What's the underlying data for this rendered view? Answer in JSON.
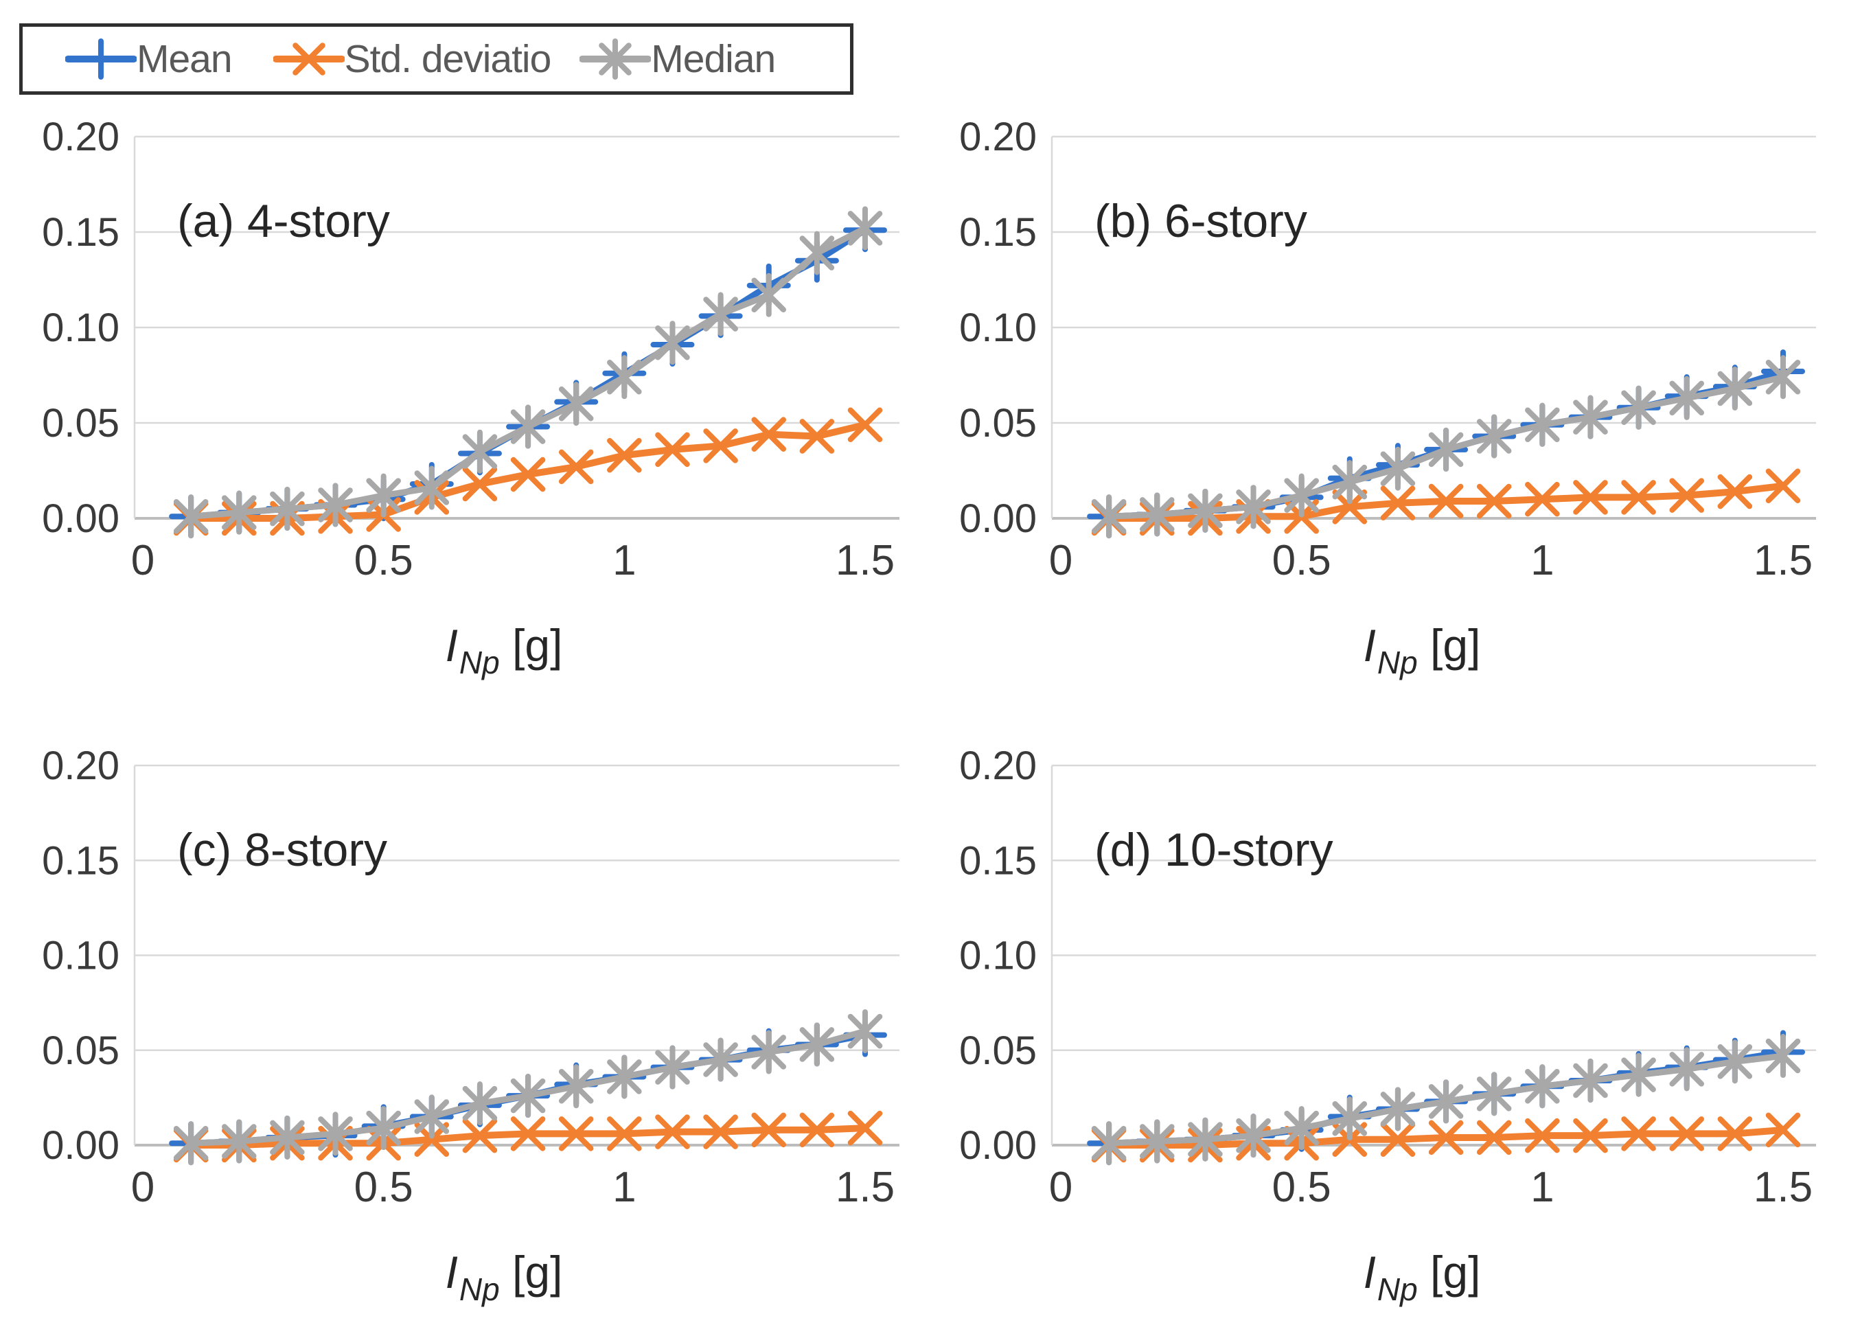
{
  "figure": {
    "legend": {
      "items": [
        {
          "label": "Mean",
          "color": "#3273cb",
          "marker": "plus"
        },
        {
          "label": "Std. deviatio",
          "color": "#f28031",
          "marker": "x"
        },
        {
          "label": "Median",
          "color": "#a8a8a8",
          "marker": "asterisk"
        }
      ]
    },
    "colors": {
      "gridline": "#d9d9d9",
      "x_axis_line": "#bdbdbd",
      "y_axis_line": "#d9d9d9",
      "tick_text": "#3a3a3a",
      "title_text": "#262626",
      "legend_text": "#595959",
      "legend_border": "#2f2f2f"
    }
  },
  "chart_data": [
    {
      "id": "a",
      "type": "line",
      "title": "(a) 4-story",
      "x": [
        0.1,
        0.2,
        0.3,
        0.4,
        0.5,
        0.6,
        0.7,
        0.8,
        0.9,
        1.0,
        1.1,
        1.2,
        1.3,
        1.4,
        1.5
      ],
      "series": [
        {
          "name": "Mean",
          "marker": "plus",
          "color": "#3273cb",
          "values": [
            0.001,
            0.003,
            0.005,
            0.007,
            0.01,
            0.018,
            0.034,
            0.048,
            0.061,
            0.076,
            0.091,
            0.106,
            0.122,
            0.135,
            0.151
          ]
        },
        {
          "name": "Std. deviatio",
          "marker": "x",
          "color": "#f28031",
          "values": [
            0.0,
            0.0,
            0.0,
            0.001,
            0.002,
            0.011,
            0.018,
            0.023,
            0.027,
            0.033,
            0.036,
            0.038,
            0.044,
            0.043,
            0.049
          ]
        },
        {
          "name": "Median",
          "marker": "asterisk",
          "color": "#a8a8a8",
          "values": [
            0.001,
            0.003,
            0.005,
            0.007,
            0.012,
            0.016,
            0.035,
            0.048,
            0.06,
            0.074,
            0.092,
            0.107,
            0.117,
            0.139,
            0.152
          ]
        }
      ],
      "xlabel": {
        "var": "I",
        "sub": "Np",
        "unit": " [g]"
      },
      "xlim": [
        0,
        1.58
      ],
      "ylim": [
        0,
        0.2
      ],
      "grid": "horizontal",
      "legend_position": "top-left-of-figure",
      "xticks": [
        {
          "v": 0,
          "label": "0"
        },
        {
          "v": 0.5,
          "label": "0.5"
        },
        {
          "v": 1,
          "label": "1"
        },
        {
          "v": 1.5,
          "label": "1.5"
        }
      ],
      "yticks": [
        {
          "v": 0,
          "label": "0.00"
        },
        {
          "v": 0.05,
          "label": "0.05"
        },
        {
          "v": 0.1,
          "label": "0.10"
        },
        {
          "v": 0.15,
          "label": "0.15"
        },
        {
          "v": 0.2,
          "label": "0.20"
        }
      ]
    },
    {
      "id": "b",
      "type": "line",
      "title": "(b) 6-story",
      "x": [
        0.1,
        0.2,
        0.3,
        0.4,
        0.5,
        0.6,
        0.7,
        0.8,
        0.9,
        1.0,
        1.1,
        1.2,
        1.3,
        1.4,
        1.5
      ],
      "series": [
        {
          "name": "Mean",
          "marker": "plus",
          "color": "#3273cb",
          "values": [
            0.001,
            0.002,
            0.004,
            0.006,
            0.011,
            0.021,
            0.028,
            0.036,
            0.043,
            0.049,
            0.053,
            0.058,
            0.064,
            0.069,
            0.077
          ]
        },
        {
          "name": "Std. deviatio",
          "marker": "x",
          "color": "#f28031",
          "values": [
            0.0,
            0.0,
            0.0,
            0.001,
            0.001,
            0.006,
            0.008,
            0.009,
            0.009,
            0.01,
            0.011,
            0.011,
            0.012,
            0.014,
            0.017
          ]
        },
        {
          "name": "Median",
          "marker": "asterisk",
          "color": "#a8a8a8",
          "values": [
            0.001,
            0.002,
            0.004,
            0.006,
            0.012,
            0.019,
            0.026,
            0.036,
            0.043,
            0.049,
            0.053,
            0.058,
            0.063,
            0.068,
            0.074
          ]
        }
      ],
      "xlabel": {
        "var": "I",
        "sub": "Np",
        "unit": " [g]"
      },
      "xlim": [
        0,
        1.58
      ],
      "ylim": [
        0,
        0.2
      ],
      "grid": "horizontal",
      "xticks": [
        {
          "v": 0,
          "label": "0"
        },
        {
          "v": 0.5,
          "label": "0.5"
        },
        {
          "v": 1,
          "label": "1"
        },
        {
          "v": 1.5,
          "label": "1.5"
        }
      ],
      "yticks": [
        {
          "v": 0,
          "label": "0.00"
        },
        {
          "v": 0.05,
          "label": "0.05"
        },
        {
          "v": 0.1,
          "label": "0.10"
        },
        {
          "v": 0.15,
          "label": "0.15"
        },
        {
          "v": 0.2,
          "label": "0.20"
        }
      ]
    },
    {
      "id": "c",
      "type": "line",
      "title": "(c) 8-story",
      "x": [
        0.1,
        0.2,
        0.3,
        0.4,
        0.5,
        0.6,
        0.7,
        0.8,
        0.9,
        1.0,
        1.1,
        1.2,
        1.3,
        1.4,
        1.5
      ],
      "series": [
        {
          "name": "Mean",
          "marker": "plus",
          "color": "#3273cb",
          "values": [
            0.001,
            0.002,
            0.004,
            0.005,
            0.01,
            0.015,
            0.021,
            0.026,
            0.032,
            0.036,
            0.041,
            0.045,
            0.05,
            0.053,
            0.058
          ]
        },
        {
          "name": "Std. deviatio",
          "marker": "x",
          "color": "#f28031",
          "values": [
            0.0,
            0.0,
            0.001,
            0.001,
            0.001,
            0.003,
            0.005,
            0.006,
            0.006,
            0.006,
            0.007,
            0.007,
            0.008,
            0.008,
            0.009
          ]
        },
        {
          "name": "Median",
          "marker": "asterisk",
          "color": "#a8a8a8",
          "values": [
            0.001,
            0.002,
            0.004,
            0.006,
            0.009,
            0.015,
            0.022,
            0.026,
            0.031,
            0.036,
            0.041,
            0.045,
            0.049,
            0.053,
            0.06
          ]
        }
      ],
      "xlabel": {
        "var": "I",
        "sub": "Np",
        "unit": " [g]"
      },
      "xlim": [
        0,
        1.58
      ],
      "ylim": [
        0,
        0.2
      ],
      "grid": "horizontal",
      "xticks": [
        {
          "v": 0,
          "label": "0"
        },
        {
          "v": 0.5,
          "label": "0.5"
        },
        {
          "v": 1,
          "label": "1"
        },
        {
          "v": 1.5,
          "label": "1.5"
        }
      ],
      "yticks": [
        {
          "v": 0,
          "label": "0.00"
        },
        {
          "v": 0.05,
          "label": "0.05"
        },
        {
          "v": 0.1,
          "label": "0.10"
        },
        {
          "v": 0.15,
          "label": "0.15"
        },
        {
          "v": 0.2,
          "label": "0.20"
        }
      ]
    },
    {
      "id": "d",
      "type": "line",
      "title": "(d) 10-story",
      "x": [
        0.1,
        0.2,
        0.3,
        0.4,
        0.5,
        0.6,
        0.7,
        0.8,
        0.9,
        1.0,
        1.1,
        1.2,
        1.3,
        1.4,
        1.5
      ],
      "series": [
        {
          "name": "Mean",
          "marker": "plus",
          "color": "#3273cb",
          "values": [
            0.001,
            0.002,
            0.003,
            0.005,
            0.008,
            0.015,
            0.019,
            0.023,
            0.027,
            0.031,
            0.034,
            0.038,
            0.041,
            0.045,
            0.049
          ]
        },
        {
          "name": "Std. deviatio",
          "marker": "x",
          "color": "#f28031",
          "values": [
            0.0,
            0.0,
            0.0,
            0.001,
            0.001,
            0.003,
            0.003,
            0.004,
            0.004,
            0.005,
            0.005,
            0.006,
            0.006,
            0.006,
            0.008
          ]
        },
        {
          "name": "Median",
          "marker": "asterisk",
          "color": "#a8a8a8",
          "values": [
            0.001,
            0.002,
            0.003,
            0.005,
            0.009,
            0.014,
            0.019,
            0.023,
            0.027,
            0.031,
            0.034,
            0.037,
            0.04,
            0.044,
            0.047
          ]
        }
      ],
      "xlabel": {
        "var": "I",
        "sub": "Np",
        "unit": " [g]"
      },
      "xlim": [
        0,
        1.58
      ],
      "ylim": [
        0,
        0.2
      ],
      "grid": "horizontal",
      "xticks": [
        {
          "v": 0,
          "label": "0"
        },
        {
          "v": 0.5,
          "label": "0.5"
        },
        {
          "v": 1,
          "label": "1"
        },
        {
          "v": 1.5,
          "label": "1.5"
        }
      ],
      "yticks": [
        {
          "v": 0,
          "label": "0.00"
        },
        {
          "v": 0.05,
          "label": "0.05"
        },
        {
          "v": 0.1,
          "label": "0.10"
        },
        {
          "v": 0.15,
          "label": "0.15"
        },
        {
          "v": 0.2,
          "label": "0.20"
        }
      ]
    }
  ]
}
